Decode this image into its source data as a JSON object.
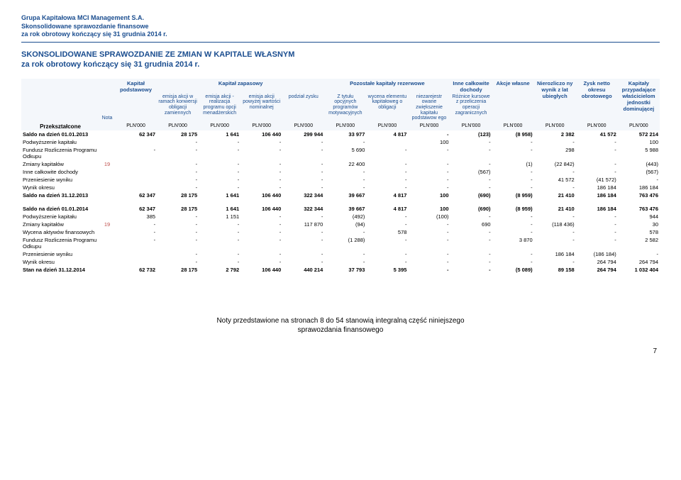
{
  "header": {
    "line1": "Grupa Kapitałowa MCI Management S.A.",
    "line2": "Skonsolidowane sprawozdanie finansowe",
    "line3": "za rok obrotowy kończący się 31 grudnia 2014 r."
  },
  "title": {
    "line1": "SKONSOLIDOWANE SPRAWOZDANIE ZE ZMIAN W KAPITALE WŁASNYM",
    "line2": "za rok obrotowy kończący się 31 grudnia 2014 r."
  },
  "table": {
    "group_headers": {
      "c1": "Kapitał podstawowy",
      "c2_span": "Kapitał zapasowy",
      "c3_span": "Pozostałe kapitały rezerwowe",
      "c4": "Inne całkowite dochody",
      "c5": "Akcje własne",
      "c6": "Nierozliczo ny wynik z lat ubiegłych",
      "c7": "Zysk netto okresu obrotowego",
      "c8": "Kapitały przypadające właścicielom jednostki dominującej"
    },
    "sub_headers": {
      "s1": "emisja akcji w ramach konwersji obligacji zamiennych",
      "s2": "emisja akcji - realizacja programu opcji menadżerskich",
      "s3": "emisja akcji powyżej wartości nominalnej",
      "s4": "podział zysku",
      "s5": "Z tytułu opcyjnych programów motywacyjnych",
      "s6": "wycena elementu kapitałoweg o obligacji",
      "s7": "niezarejestr owane zwiększenie kapitału podstawow ego",
      "s8": "Różnice kursowe z przeliczenia operacji zagranicznych"
    },
    "nota_label": "Nota",
    "przeksztalcone": "Przekształcone",
    "unit": "PLN'000",
    "rows2013": [
      {
        "label": "Saldo na dzień 01.01.2013",
        "nota": "",
        "bold": true,
        "v": [
          "62 347",
          "28 175",
          "1 641",
          "106 440",
          "299 944",
          "33 977",
          "4 817",
          "-",
          "(123)",
          "(8 958)",
          "2 382",
          "41 572",
          "572 214"
        ]
      },
      {
        "label": "Podwyższenie kapitału",
        "nota": "",
        "v": [
          "",
          "-",
          "-",
          "-",
          "-",
          "-",
          "",
          "100",
          "-",
          "-",
          "-",
          "-",
          "100"
        ]
      },
      {
        "label": "Fundusz Rozliczenia Programu Odkupu",
        "nota": "",
        "v": [
          "",
          "-",
          "-",
          "-",
          "-",
          "-",
          "5 690",
          "-",
          "-",
          "-",
          "-",
          "298",
          "-",
          "5 988"
        ],
        "wrap": true
      },
      {
        "label": "Zmiany kapitałów",
        "nota": "19",
        "v": [
          "",
          "-",
          "-",
          "-",
          "-",
          "22 400",
          "-",
          "-",
          "-",
          "(1)",
          "(22 842)",
          "-",
          "(443)"
        ]
      },
      {
        "label": "Inne całkowite dochody",
        "nota": "",
        "v": [
          "",
          "-",
          "-",
          "-",
          "-",
          "-",
          "-",
          "-",
          "(567)",
          "-",
          "-",
          "-",
          "(567)"
        ]
      },
      {
        "label": "Przeniesienie wyniku",
        "nota": "",
        "v": [
          "",
          "-",
          "-",
          "-",
          "-",
          "-",
          "-",
          "-",
          "-",
          "-",
          "41 572",
          "(41 572)",
          "-"
        ]
      },
      {
        "label": "Wynik okresu",
        "nota": "",
        "v": [
          "",
          "-",
          "-",
          "-",
          "-",
          "-",
          "-",
          "-",
          "-",
          "-",
          "-",
          "186 184",
          "186 184"
        ]
      },
      {
        "label": "Saldo na dzień 31.12.2013",
        "nota": "",
        "bold": true,
        "v": [
          "62 347",
          "28 175",
          "1 641",
          "106 440",
          "322 344",
          "39 667",
          "4 817",
          "100",
          "(690)",
          "(8 959)",
          "21 410",
          "186 184",
          "763 476"
        ]
      }
    ],
    "rows2014": [
      {
        "label": "Saldo na dzień 01.01.2014",
        "nota": "",
        "bold": true,
        "v": [
          "62 347",
          "28 175",
          "1 641",
          "106 440",
          "322 344",
          "39 667",
          "4 817",
          "100",
          "(690)",
          "(8 959)",
          "21 410",
          "186 184",
          "763 476"
        ]
      },
      {
        "label": "Podwyższenie kapitału",
        "nota": "",
        "v": [
          "385",
          "-",
          "1 151",
          "-",
          "-",
          "(492)",
          "-",
          "(100)",
          "-",
          "-",
          "-",
          "-",
          "944"
        ]
      },
      {
        "label": "Zmiany kapitałów",
        "nota": "19",
        "v": [
          "-",
          "-",
          "-",
          "-",
          "117 870",
          "(94)",
          "-",
          "-",
          "690",
          "-",
          "(118 436)",
          "-",
          "30"
        ]
      },
      {
        "label": "Wycena aktywów finansowych",
        "nota": "",
        "v": [
          "",
          "-",
          "-",
          "-",
          "-",
          "-",
          "-",
          "578",
          "-",
          "-",
          "-",
          "-",
          "-",
          "578"
        ],
        "wrap": true
      },
      {
        "label": "Fundusz Rozliczenia Programu Odkupu",
        "nota": "",
        "v": [
          "",
          "-",
          "-",
          "-",
          "-",
          "-",
          "(1 288)",
          "-",
          "-",
          "-",
          "3 870",
          "-",
          "-",
          "2 582"
        ],
        "wrap": true
      },
      {
        "label": "Przeniesienie wyniku",
        "nota": "",
        "v": [
          "",
          "-",
          "-",
          "-",
          "-",
          "-",
          "-",
          "-",
          "-",
          "-",
          "186 184",
          "(186 184)",
          "-"
        ]
      },
      {
        "label": "Wynik okresu",
        "nota": "",
        "v": [
          "",
          "-",
          "-",
          "-",
          "-",
          "-",
          "-",
          "-",
          "-",
          "-",
          "-",
          "264 794",
          "264 794"
        ]
      },
      {
        "label": "Stan na dzień 31.12.2014",
        "nota": "",
        "bold": true,
        "v": [
          "62 732",
          "28 175",
          "2 792",
          "106 440",
          "440 214",
          "37 793",
          "5 395",
          "-",
          "-",
          "(5 089)",
          "89 158",
          "264 794",
          "1 032 404"
        ]
      }
    ]
  },
  "footer": {
    "line1": "Noty przedstawione na stronach 8 do 54 stanowią integralną część niniejszego",
    "line2": "sprawozdania finansowego"
  },
  "pagenum": "7"
}
